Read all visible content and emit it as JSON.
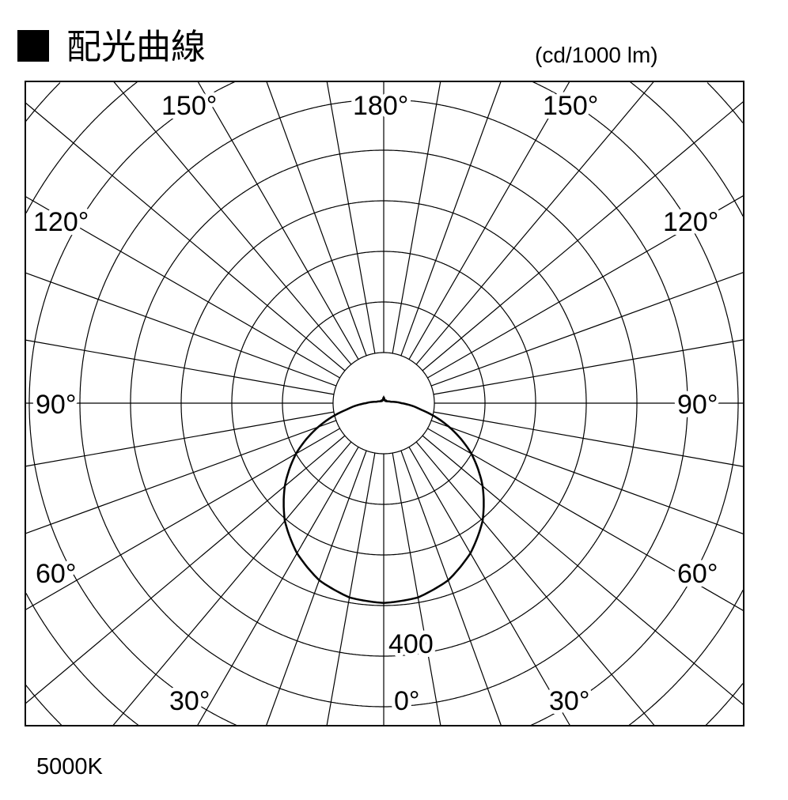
{
  "title": "配光曲線",
  "unit_label": "(cd/1000 lm)",
  "color_temperature": "5000K",
  "chart_data": {
    "type": "polar",
    "title": "配光曲線",
    "unit": "(cd/1000 lm)",
    "radial_step": 80,
    "radial_label": "400",
    "radial_label_value": 400,
    "angle_labels": [
      "0°",
      "30°",
      "60°",
      "90°",
      "120°",
      "150°",
      "180°"
    ],
    "angle_grid_step_deg": 10,
    "grid": true,
    "series": [
      {
        "angles": [
          0,
          10,
          20,
          30,
          40,
          50,
          60,
          70,
          80,
          90,
          100,
          110,
          120,
          130,
          140,
          150,
          160,
          170,
          175,
          180
        ],
        "values": [
          316,
          312,
          298,
          274,
          243,
          204,
          160,
          110,
          60,
          28,
          12,
          8,
          6,
          5,
          5,
          5,
          5,
          5,
          8,
          9
        ]
      }
    ],
    "symmetric": true,
    "line_color": "#000000"
  }
}
